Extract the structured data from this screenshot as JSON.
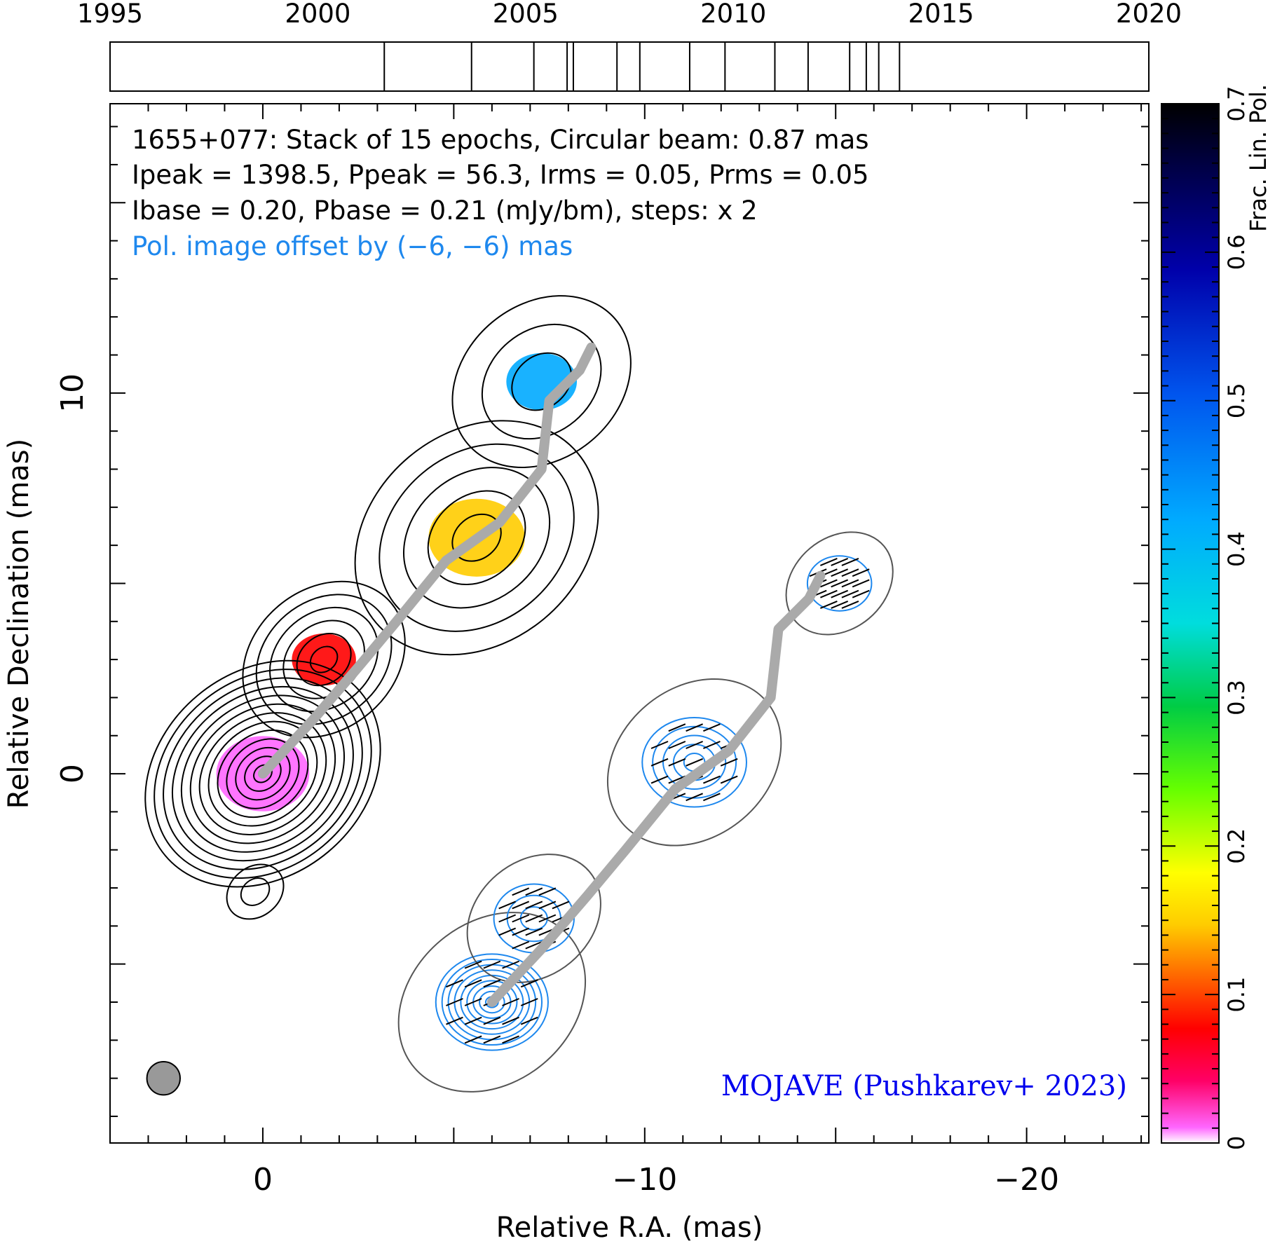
{
  "chart_data": {
    "type": "contour",
    "source": "1655+077",
    "header_lines": [
      "1655+077: Stack of 15 epochs, Circular beam: 0.87 mas",
      "Ipeak = 1398.5, Ppeak = 56.3, Irms = 0.05, Prms = 0.05",
      "Ibase = 0.20, Pbase = 0.21 (mJy/bm), steps: x 2"
    ],
    "offset_note": "Pol. image offset by (−6, −6) mas",
    "credit": "MOJAVE (Pushkarev+ 2023)",
    "xlabel": "Relative R.A. (mas)",
    "ylabel": "Relative Declination (mas)",
    "x_ticklabels": [
      "0",
      "−10",
      "−20"
    ],
    "x_ticks": [
      0,
      -10,
      -20
    ],
    "y_ticklabels": [
      "0",
      "10"
    ],
    "y_ticks": [
      0,
      10
    ],
    "xlim": [
      4.0,
      -23.2
    ],
    "ylim": [
      -9.7,
      17.6
    ],
    "x_inverted": true,
    "epoch_axis": {
      "xlim": [
        1995,
        2020
      ],
      "ticklabels": [
        "1995",
        "2000",
        "2005",
        "2010",
        "2015",
        "2020"
      ],
      "ticks": [
        1995,
        2000,
        2005,
        2010,
        2015,
        2020
      ],
      "epochs": [
        2001.6,
        2003.7,
        2005.2,
        2006.0,
        2006.15,
        2007.2,
        2007.75,
        2008.95,
        2009.8,
        2011.0,
        2011.8,
        2012.8,
        2013.2,
        2013.5,
        2014.0
      ]
    },
    "colorbar": {
      "label": "Frac. Lin. Pol.",
      "range": [
        0,
        0.7
      ],
      "ticks": [
        0,
        0.1,
        0.2,
        0.3,
        0.4,
        0.5,
        0.6,
        0.7
      ],
      "ticklabels": [
        "0",
        "0.1",
        "0.2",
        "0.3",
        "0.4",
        "0.5",
        "0.6",
        "0.7"
      ]
    },
    "beam": {
      "diameter_mas": 0.87,
      "position": "bottom-left",
      "color": "#999999"
    },
    "stokes_i": {
      "peak_mJy": 1398.5,
      "rms_mJy": 0.05,
      "base_mJy": 0.2,
      "step_factor": 2,
      "components": [
        {
          "x": 0.0,
          "y": 0.0,
          "n_contours": 13,
          "max_radius": 2.9,
          "color_fpol": 0.01
        },
        {
          "x": -5.6,
          "y": 6.2,
          "n_contours": 5,
          "max_radius": 3.0,
          "color_fpol": 0.15
        },
        {
          "x": -7.3,
          "y": 10.3,
          "n_contours": 3,
          "max_radius": 2.2,
          "color_fpol": 0.45
        },
        {
          "x": -1.6,
          "y": 3.0,
          "n_contours": 6,
          "max_radius": 2.0,
          "color_fpol": 0.07
        },
        {
          "x": 0.2,
          "y": -3.1,
          "n_contours": 2,
          "max_radius": 0.7,
          "color_fpol": null
        }
      ]
    },
    "polarization": {
      "peak_mJy": 56.3,
      "rms_mJy": 0.05,
      "base_mJy": 0.21,
      "offset_mas": [
        -6,
        -6
      ],
      "components": [
        {
          "x": -6.0,
          "y": -6.0,
          "n_contours": 9,
          "max_radius": 1.4
        },
        {
          "x": -7.1,
          "y": -3.8,
          "n_contours": 3,
          "max_radius": 1.0
        },
        {
          "x": -11.3,
          "y": 0.3,
          "n_contours": 5,
          "max_radius": 1.3
        },
        {
          "x": -15.1,
          "y": 5.0,
          "n_contours": 1,
          "max_radius": 0.8
        }
      ]
    },
    "ridgeline": [
      {
        "x": 0.0,
        "y": 0.0
      },
      {
        "x": -1.3,
        "y": 1.4
      },
      {
        "x": -2.5,
        "y": 2.8
      },
      {
        "x": -3.5,
        "y": 4.0
      },
      {
        "x": -4.8,
        "y": 5.6
      },
      {
        "x": -6.2,
        "y": 6.6
      },
      {
        "x": -7.3,
        "y": 8.0
      },
      {
        "x": -7.5,
        "y": 9.8
      },
      {
        "x": -8.3,
        "y": 10.6
      },
      {
        "x": -8.6,
        "y": 11.2
      }
    ]
  }
}
